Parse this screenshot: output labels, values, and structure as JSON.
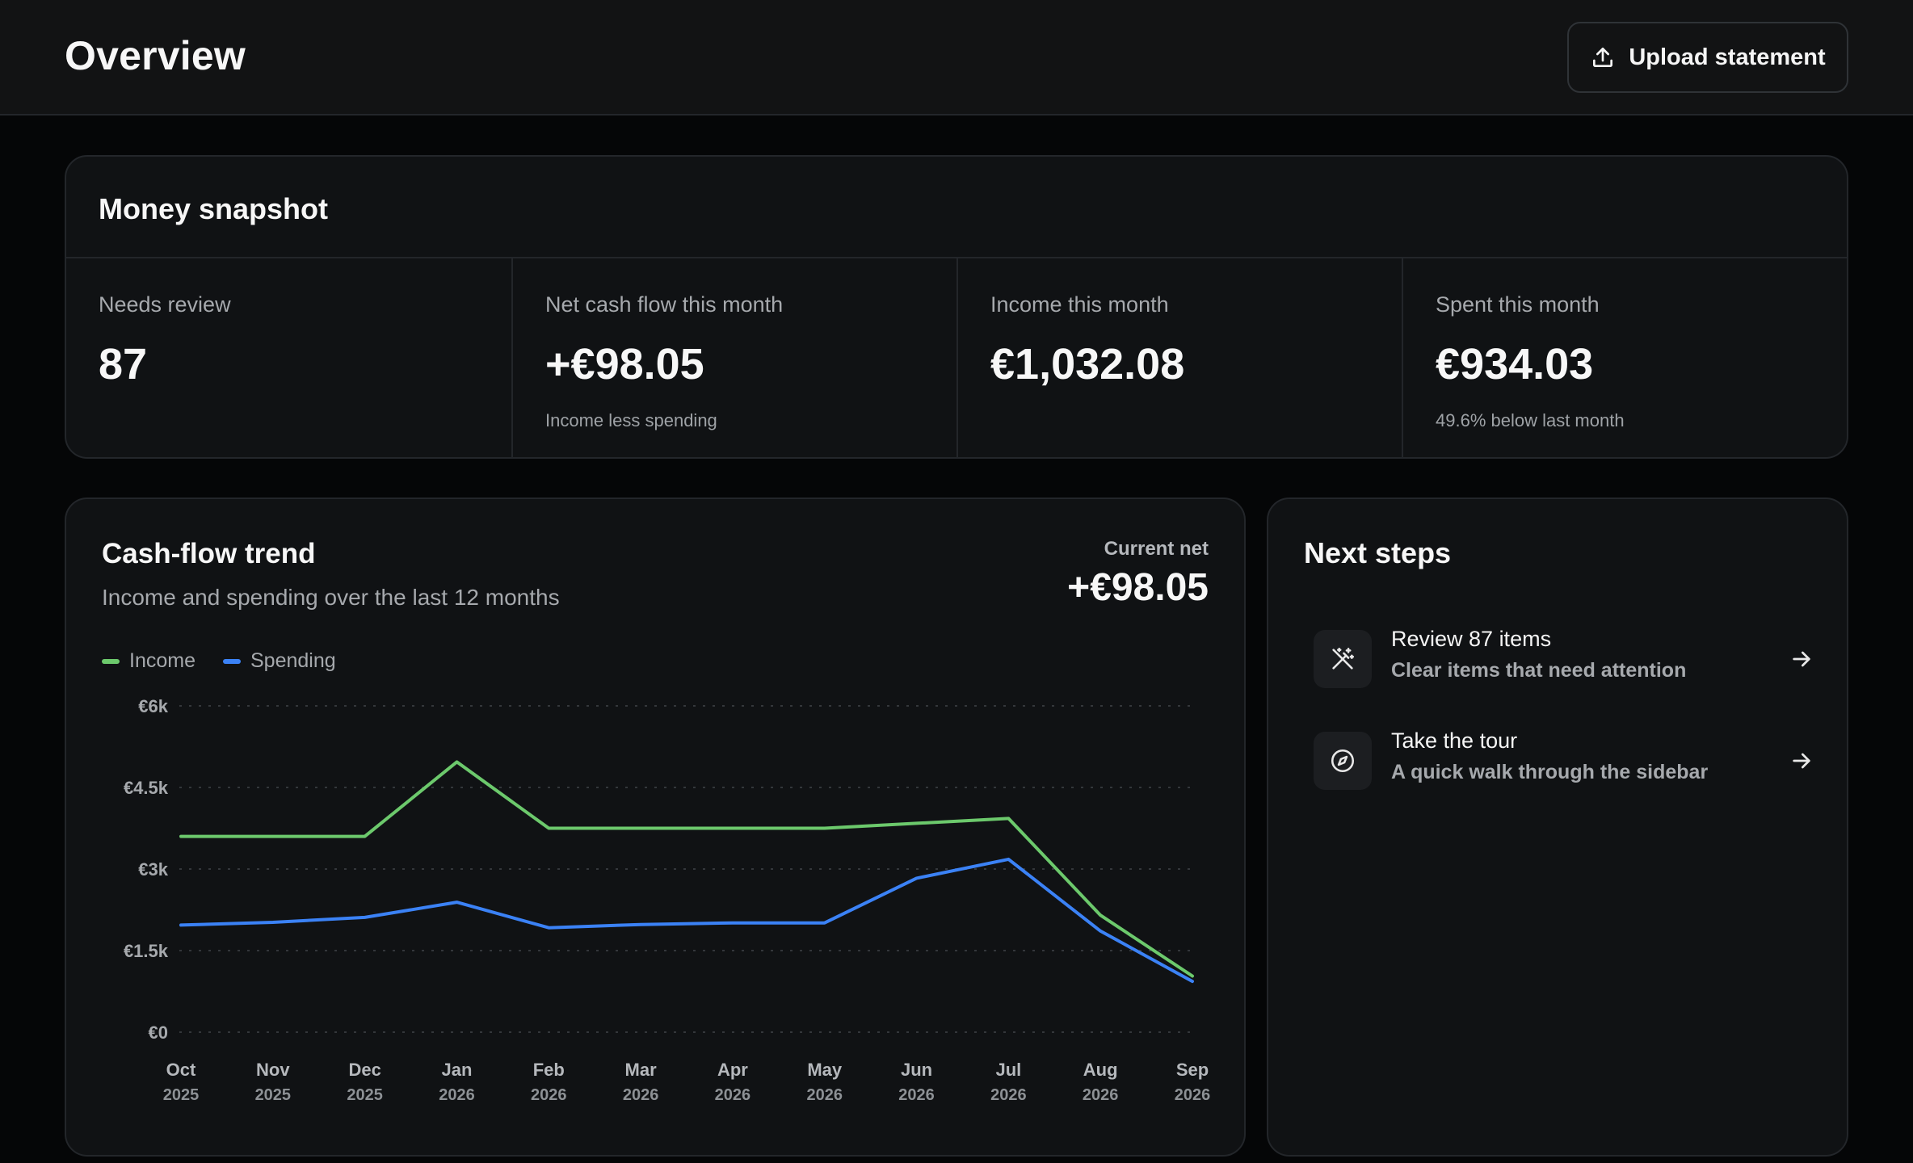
{
  "header": {
    "title": "Overview",
    "upload_label": "Upload statement"
  },
  "snapshot": {
    "title": "Money snapshot",
    "metrics": [
      {
        "label": "Needs review",
        "value": "87",
        "sub": ""
      },
      {
        "label": "Net cash flow this month",
        "value": "+€98.05",
        "sub": "Income less spending"
      },
      {
        "label": "Income this month",
        "value": "€1,032.08",
        "sub": ""
      },
      {
        "label": "Spent this month",
        "value": "€934.03",
        "sub": "49.6% below last month"
      }
    ]
  },
  "cashflow": {
    "title": "Cash-flow trend",
    "subtitle": "Income and spending over the last 12 months",
    "current_net_label": "Current net",
    "current_net_value": "+€98.05",
    "legend": [
      {
        "name": "Income",
        "color": "#6cc96c"
      },
      {
        "name": "Spending",
        "color": "#3b82f6"
      }
    ]
  },
  "chart_data": {
    "type": "line",
    "title": "Cash-flow trend",
    "subtitle": "Income and spending over the last 12 months",
    "categories": [
      [
        "Oct",
        "2025"
      ],
      [
        "Nov",
        "2025"
      ],
      [
        "Dec",
        "2025"
      ],
      [
        "Jan",
        "2026"
      ],
      [
        "Feb",
        "2026"
      ],
      [
        "Mar",
        "2026"
      ],
      [
        "Apr",
        "2026"
      ],
      [
        "May",
        "2026"
      ],
      [
        "Jun",
        "2026"
      ],
      [
        "Jul",
        "2026"
      ],
      [
        "Aug",
        "2026"
      ],
      [
        "Sep",
        "2026"
      ]
    ],
    "series": [
      {
        "name": "Income",
        "color": "#6cc96c",
        "values": [
          3600,
          3600,
          3600,
          4970,
          3750,
          3750,
          3750,
          3750,
          3840,
          3930,
          2150,
          1032
        ]
      },
      {
        "name": "Spending",
        "color": "#3b82f6",
        "values": [
          1970,
          2020,
          2110,
          2390,
          1920,
          1980,
          2010,
          2010,
          2830,
          3180,
          1860,
          934
        ]
      }
    ],
    "yticks": [
      {
        "value": 0,
        "label": "€0"
      },
      {
        "value": 1500,
        "label": "€1.5k"
      },
      {
        "value": 3000,
        "label": "€3k"
      },
      {
        "value": 4500,
        "label": "€4.5k"
      },
      {
        "value": 6000,
        "label": "€6k"
      }
    ],
    "ylim": [
      0,
      6000
    ],
    "grid": true,
    "legend_position": "top-left"
  },
  "next_steps": {
    "title": "Next steps",
    "items": [
      {
        "title": "Review 87 items",
        "desc": "Clear items that need attention",
        "icon": "magic-wand-icon"
      },
      {
        "title": "Take the tour",
        "desc": "A quick walk through the sidebar",
        "icon": "compass-icon"
      }
    ]
  }
}
